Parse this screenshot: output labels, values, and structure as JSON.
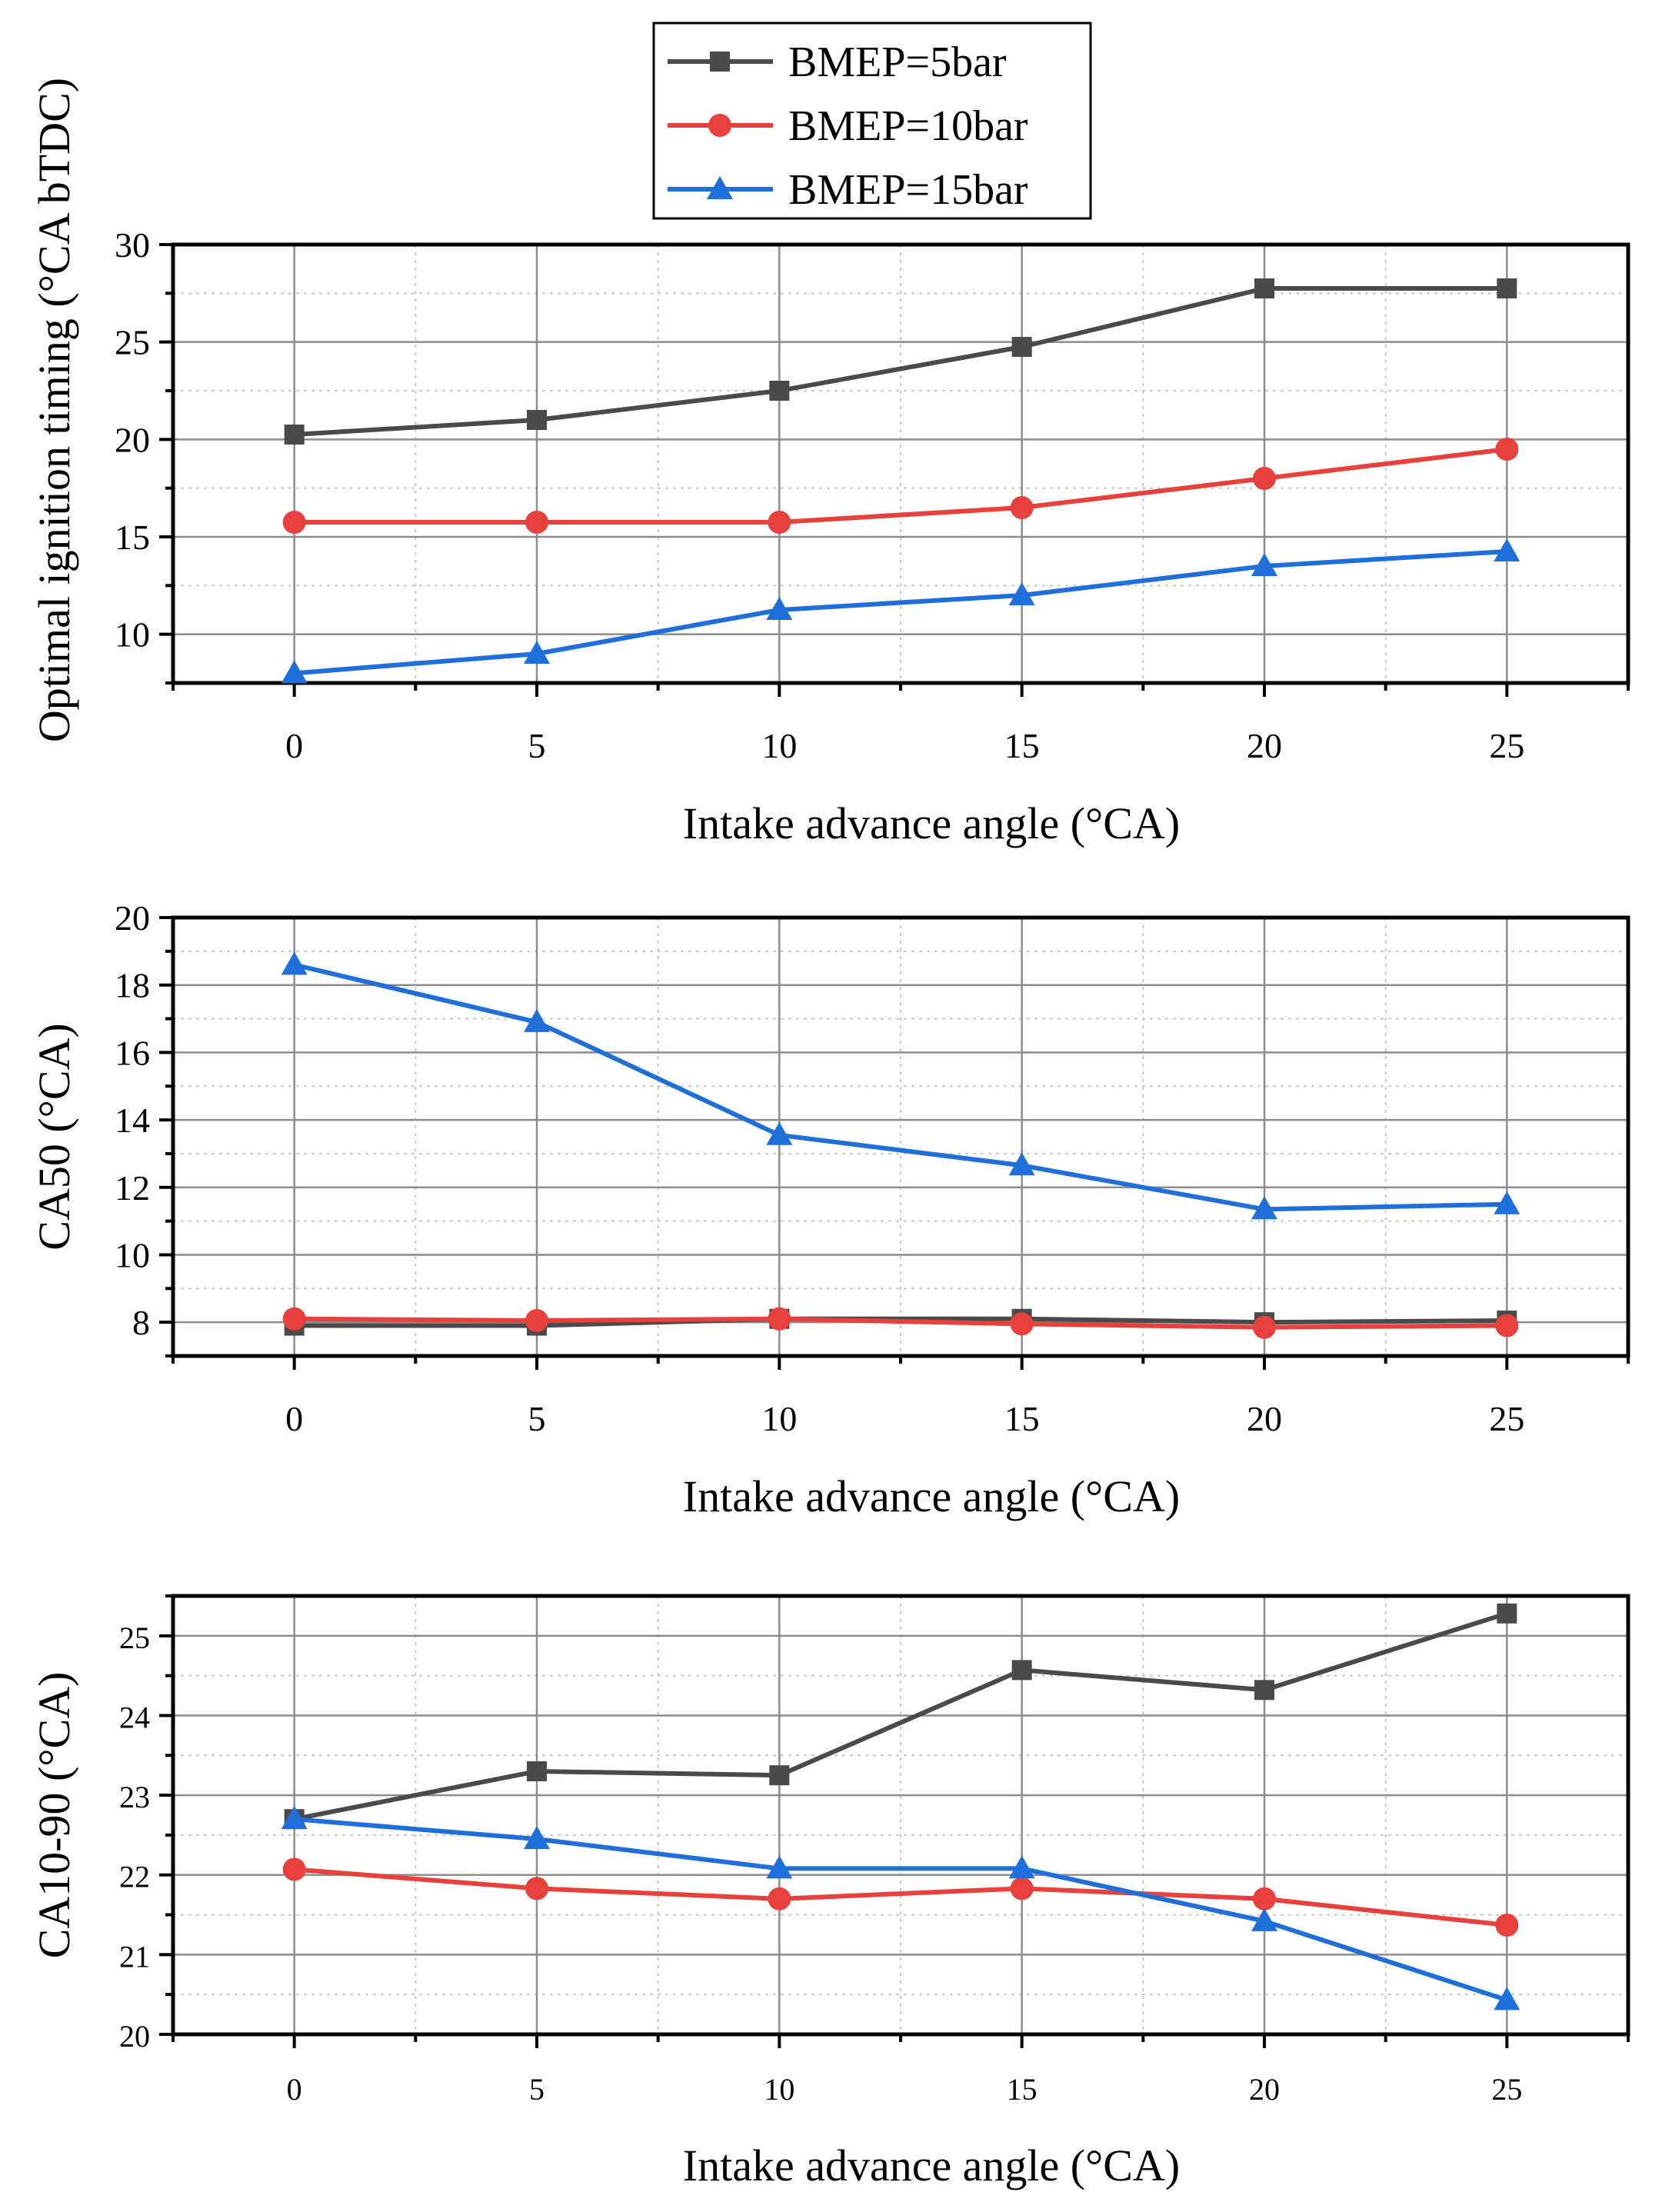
{
  "legend": [
    {
      "name": "BMEP=5bar",
      "color": "#4a4a4a",
      "marker": "square"
    },
    {
      "name": "BMEP=10bar",
      "color": "#e8403c",
      "marker": "circle"
    },
    {
      "name": "BMEP=15bar",
      "color": "#1f6fdb",
      "marker": "triangle"
    }
  ],
  "chart_data": [
    {
      "type": "line",
      "xlabel": "Intake advance angle (°CA)",
      "ylabel": "Optimal ignition timing (°CA bTDC)",
      "x": [
        0,
        5,
        10,
        15,
        20,
        25
      ],
      "xlim": [
        -2.5,
        27.5
      ],
      "ylim": [
        7.5,
        30
      ],
      "yticks": [
        10,
        15,
        20,
        25,
        30
      ],
      "xticks": [
        0,
        5,
        10,
        15,
        20,
        25
      ],
      "grid": true,
      "series": [
        {
          "name": "BMEP=5bar",
          "values": [
            20.25,
            21.0,
            22.5,
            24.75,
            27.75,
            27.75
          ]
        },
        {
          "name": "BMEP=10bar",
          "values": [
            15.75,
            15.75,
            15.75,
            16.5,
            18.0,
            19.5
          ]
        },
        {
          "name": "BMEP=15bar",
          "values": [
            8.0,
            9.0,
            11.25,
            12.0,
            13.5,
            14.25
          ]
        }
      ]
    },
    {
      "type": "line",
      "xlabel": "Intake advance angle (°CA)",
      "ylabel": "CA50 (°CA)",
      "x": [
        0,
        5,
        10,
        15,
        20,
        25
      ],
      "xlim": [
        -2.5,
        27.5
      ],
      "ylim": [
        7,
        20
      ],
      "yticks": [
        8,
        10,
        12,
        14,
        16,
        18,
        20
      ],
      "xticks": [
        0,
        5,
        10,
        15,
        20,
        25
      ],
      "grid": true,
      "series": [
        {
          "name": "BMEP=5bar",
          "values": [
            7.9,
            7.9,
            8.1,
            8.1,
            8.0,
            8.05
          ]
        },
        {
          "name": "BMEP=10bar",
          "values": [
            8.1,
            8.05,
            8.1,
            7.95,
            7.85,
            7.9
          ]
        },
        {
          "name": "BMEP=15bar",
          "values": [
            18.6,
            16.9,
            13.55,
            12.65,
            11.35,
            11.5
          ]
        }
      ]
    },
    {
      "type": "line",
      "xlabel": "Intake advance angle (°CA)",
      "ylabel": "CA10-90 (°CA)",
      "x": [
        0,
        5,
        10,
        15,
        20,
        25
      ],
      "xlim": [
        -2.5,
        27.5
      ],
      "ylim": [
        20,
        25.5
      ],
      "yticks": [
        20,
        21,
        22,
        23,
        24,
        25
      ],
      "xticks": [
        0,
        5,
        10,
        15,
        20,
        25
      ],
      "grid": true,
      "series": [
        {
          "name": "BMEP=5bar",
          "values": [
            22.7,
            23.3,
            23.25,
            24.57,
            24.32,
            25.28
          ]
        },
        {
          "name": "BMEP=10bar",
          "values": [
            22.07,
            21.83,
            21.7,
            21.83,
            21.7,
            21.37
          ]
        },
        {
          "name": "BMEP=15bar",
          "values": [
            22.7,
            22.45,
            22.08,
            22.08,
            21.42,
            20.43
          ]
        }
      ]
    }
  ]
}
